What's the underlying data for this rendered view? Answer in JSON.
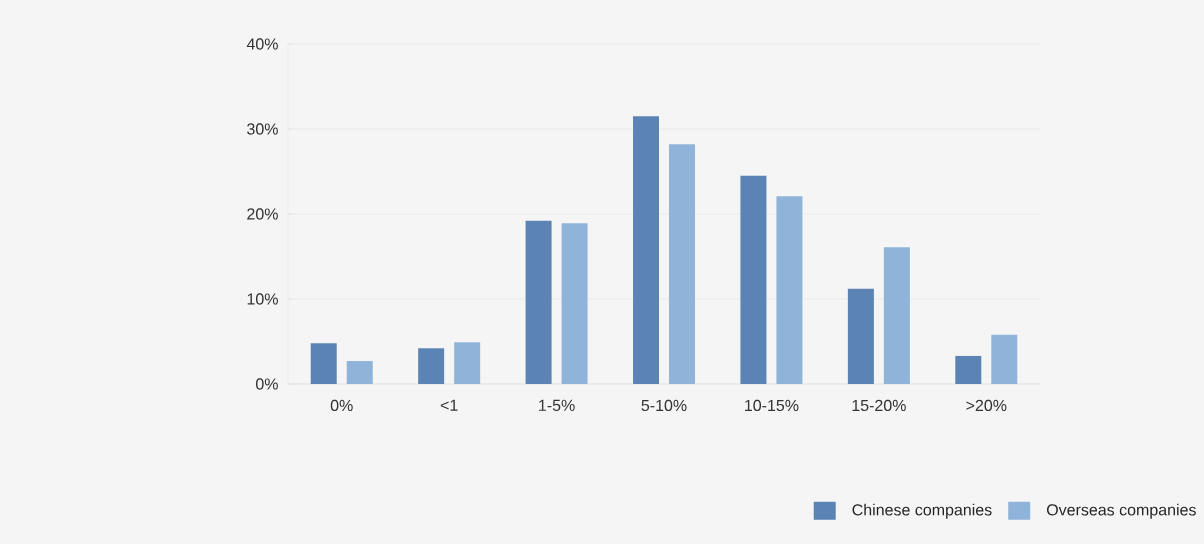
{
  "chart_data": {
    "type": "bar",
    "categories": [
      "0%",
      "<1",
      "1-5%",
      "5-10%",
      "10-15%",
      "15-20%",
      ">20%"
    ],
    "series": [
      {
        "name": "Chinese companies",
        "color": "#5b84b5",
        "values": [
          4.8,
          4.2,
          19.2,
          31.5,
          24.5,
          11.2,
          3.3
        ]
      },
      {
        "name": "Overseas companies",
        "color": "#8fb3d9",
        "values": [
          2.7,
          4.9,
          18.9,
          28.2,
          22.1,
          16.1,
          5.8
        ]
      }
    ],
    "ylim": [
      0,
      40
    ],
    "yticks": [
      {
        "value": 0,
        "label": "0%"
      },
      {
        "value": 10,
        "label": "10%"
      },
      {
        "value": 20,
        "label": "20%"
      },
      {
        "value": 30,
        "label": "30%"
      },
      {
        "value": 40,
        "label": "40%"
      }
    ],
    "grid": "y",
    "legend": "bottom right"
  }
}
